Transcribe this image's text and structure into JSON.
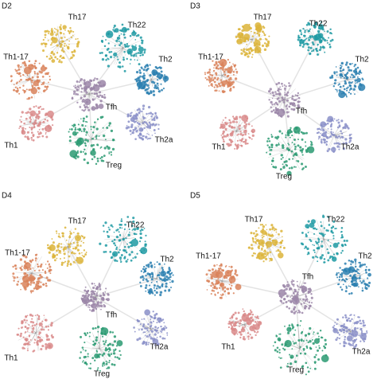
{
  "panels": [
    {
      "title": "D2",
      "nodes": [
        {
          "label": "Th17"
        },
        {
          "label": "Th22"
        },
        {
          "label": "Th1-17"
        },
        {
          "label": "Th2"
        },
        {
          "label": "Tfh"
        },
        {
          "label": "Th1"
        },
        {
          "label": "Th2a"
        },
        {
          "label": "Treg"
        }
      ]
    },
    {
      "title": "D3",
      "nodes": [
        {
          "label": "Th17"
        },
        {
          "label": "Th22"
        },
        {
          "label": "Th1-17"
        },
        {
          "label": "Th2"
        },
        {
          "label": "Tfh"
        },
        {
          "label": "Th1"
        },
        {
          "label": "Th2a"
        },
        {
          "label": "Treg"
        }
      ]
    },
    {
      "title": "D4",
      "nodes": [
        {
          "label": "Th17"
        },
        {
          "label": "Th22"
        },
        {
          "label": "Th1-17"
        },
        {
          "label": "Th2"
        },
        {
          "label": "Tfh"
        },
        {
          "label": "Th1"
        },
        {
          "label": "Th2a"
        },
        {
          "label": "Treg"
        }
      ]
    },
    {
      "title": "D5",
      "nodes": [
        {
          "label": "Th17"
        },
        {
          "label": "Th22"
        },
        {
          "label": "Th1-17"
        },
        {
          "label": "Th2"
        },
        {
          "label": "Tfh"
        },
        {
          "label": "Th1"
        },
        {
          "label": "Th2a"
        },
        {
          "label": "Treg"
        }
      ]
    }
  ]
}
